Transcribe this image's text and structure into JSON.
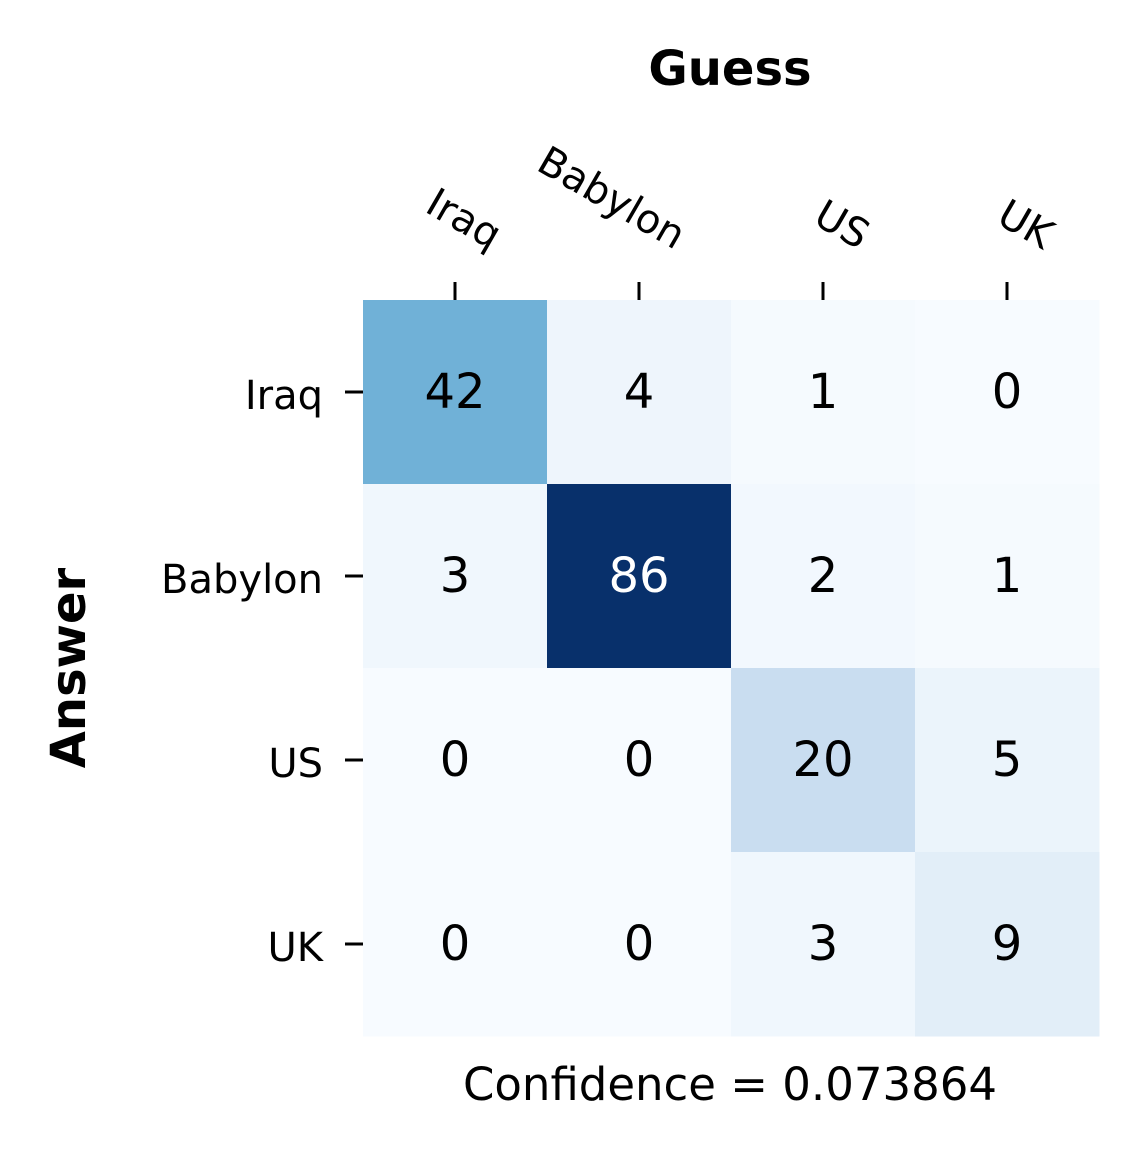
{
  "chart_data": {
    "type": "heatmap",
    "xlabel": "Guess",
    "ylabel": "Answer",
    "x_categories": [
      "Iraq",
      "Babylon",
      "US",
      "UK"
    ],
    "y_categories": [
      "Iraq",
      "Babylon",
      "US",
      "UK"
    ],
    "values": [
      [
        42,
        4,
        1,
        0
      ],
      [
        3,
        86,
        2,
        1
      ],
      [
        0,
        0,
        20,
        5
      ],
      [
        0,
        0,
        3,
        9
      ]
    ],
    "colormap": "Blues",
    "vmin": 0,
    "vmax": 86,
    "annotation_color_light": "#ffffff",
    "annotation_color_dark": "#000000",
    "x_axis_position": "top",
    "grid": false,
    "legend": "none",
    "colorbar": false,
    "note": "Confidence = 0.073864"
  }
}
